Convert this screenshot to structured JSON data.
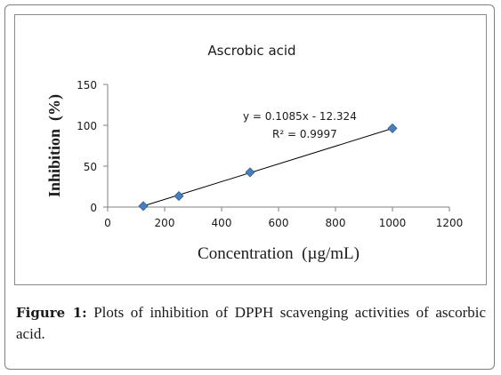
{
  "figure": {
    "label": "Figure 1:",
    "caption": " Plots of inhibition of DPPH scavenging activities of ascorbic acid."
  },
  "chart_data": {
    "type": "scatter",
    "title": "Ascrobic acid",
    "xlabel": "Concentration  (µg/mL)",
    "ylabel": "Inhibition  (%)",
    "xlim": [
      0,
      1200
    ],
    "ylim": [
      0,
      150
    ],
    "x_ticks": [
      0,
      200,
      400,
      600,
      800,
      1000,
      1200
    ],
    "y_ticks": [
      0,
      50,
      100,
      150
    ],
    "grid": false,
    "series": [
      {
        "x": [
          125,
          250,
          500,
          1000
        ],
        "y": [
          1.2,
          13.5,
          42.5,
          96.3
        ],
        "marker": "diamond",
        "color": "#4a7ebb"
      }
    ],
    "trendline": {
      "slope": 0.1085,
      "intercept": -12.324,
      "x_range": [
        125,
        1000
      ],
      "color": "#000000"
    },
    "annotations": {
      "equation": "y = 0.1085x - 12.324",
      "r_squared": "R² = 0.9997"
    }
  }
}
